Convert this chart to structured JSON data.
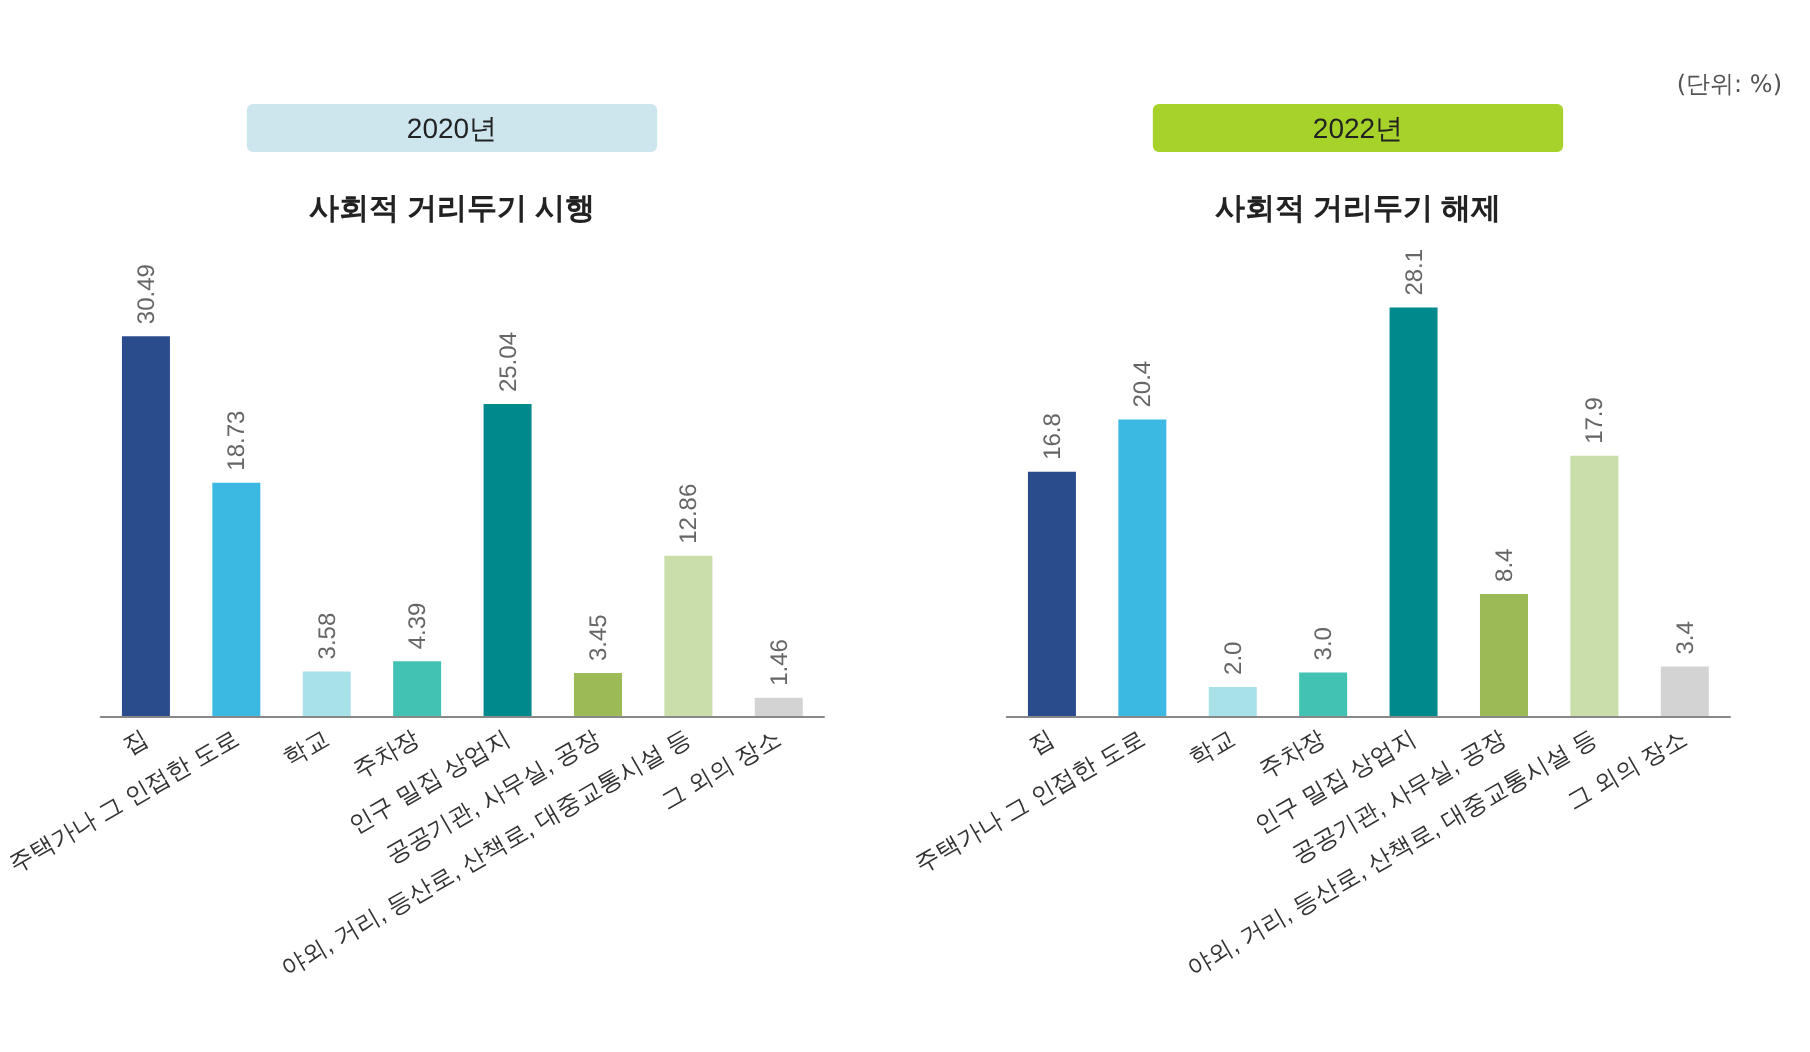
{
  "chart_data": [
    {
      "type": "bar",
      "title": "2020년",
      "subtitle": "사회적 거리두기 시행",
      "categories": [
        "집",
        "주택가나 그 인접한 도로",
        "학교",
        "주차장",
        "인구 밀집 상업지",
        "공공기관, 사무실, 공장",
        "야외, 거리, 등산로, 산책로, 대중교통시설 등",
        "그 외의 장소"
      ],
      "values": [
        30.49,
        18.73,
        3.58,
        4.39,
        25.04,
        3.45,
        12.86,
        1.46
      ],
      "colors": [
        "#2b4c8c",
        "#3cb9e3",
        "#a9e1e8",
        "#41c2b2",
        "#00898c",
        "#9cba55",
        "#c9dea9",
        "#d3d3d3"
      ],
      "data_labels": true
    },
    {
      "type": "bar",
      "title": "2022년",
      "subtitle": "사회적 거리두기 해제",
      "annotations": [
        "(단위: %)"
      ],
      "categories": [
        "집",
        "주택가나 그 인접한 도로",
        "학교",
        "주차장",
        "인구 밀집 상업지",
        "공공기관, 사무실, 공장",
        "야외, 거리, 등산로, 산책로, 대중교통시설 등",
        "그 외의 장소"
      ],
      "values": [
        16.8,
        20.4,
        2.0,
        3.0,
        28.1,
        8.4,
        17.9,
        3.4
      ],
      "value_labels": [
        "16.8",
        "20.4",
        "2.0",
        "3.0",
        "28.1",
        "8.4",
        "17.9",
        "3.4"
      ],
      "colors": [
        "#2b4c8c",
        "#3cb9e3",
        "#a9e1e8",
        "#41c2b2",
        "#00898c",
        "#9cba55",
        "#c9dea9",
        "#d3d3d3"
      ]
    }
  ]
}
